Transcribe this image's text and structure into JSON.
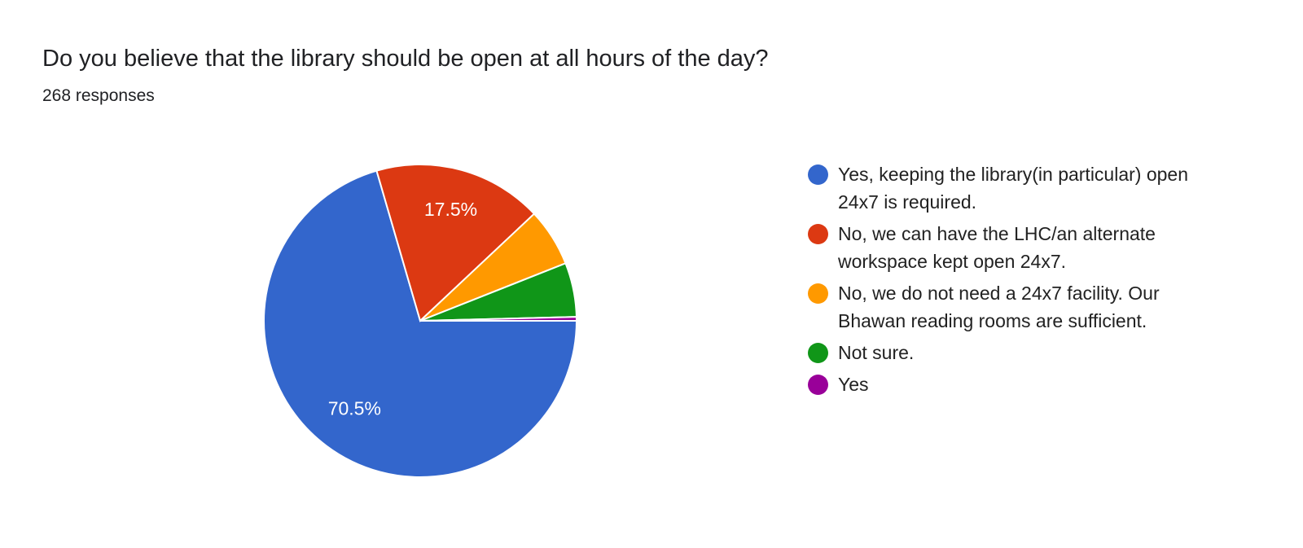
{
  "header": {
    "title": "Do you believe that the library should be open at all hours of the day?",
    "responses": "268 responses"
  },
  "chart_data": {
    "type": "pie",
    "title": "Do you believe that the library should be open at all hours of the day?",
    "legend_position": "right",
    "start_angle": "3 o'clock, clockwise",
    "categories": [
      "Yes, keeping the library(in particular) open 24x7 is required.",
      "No, we can have the LHC/an alternate workspace kept open 24x7.",
      "No, we do not need a 24x7 facility. Our Bhawan reading rooms are sufficient.",
      "Not sure.",
      "Yes"
    ],
    "values": [
      70.5,
      17.5,
      6.0,
      5.6,
      0.4
    ],
    "data_labels": [
      "70.5%",
      "17.5%",
      "",
      "",
      ""
    ],
    "colors": [
      "#3366cc",
      "#dc3912",
      "#ff9900",
      "#109618",
      "#990099"
    ]
  }
}
